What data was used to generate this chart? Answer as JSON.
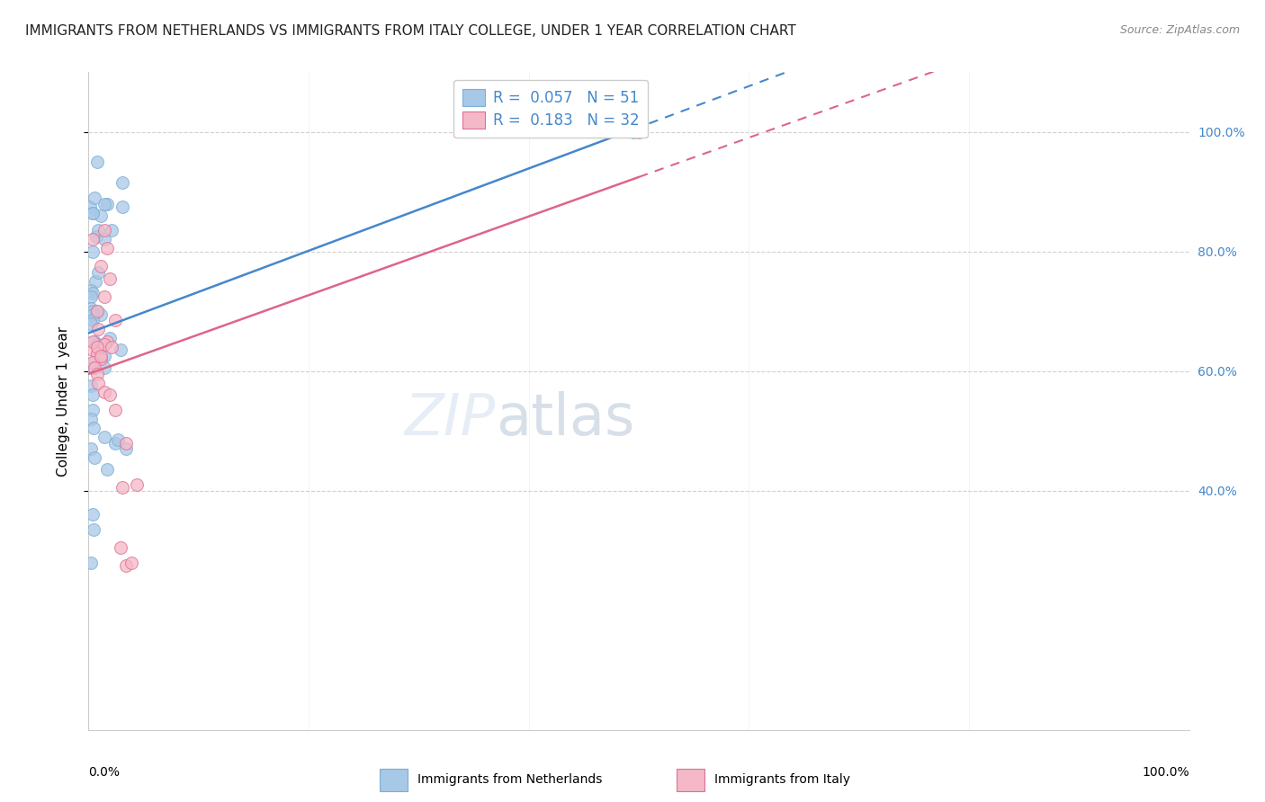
{
  "title": "IMMIGRANTS FROM NETHERLANDS VS IMMIGRANTS FROM ITALY COLLEGE, UNDER 1 YEAR CORRELATION CHART",
  "source": "Source: ZipAtlas.com",
  "ylabel": "College, Under 1 year",
  "watermark_zip": "ZIP",
  "watermark_atlas": "atlas",
  "legend_label_netherlands": "Immigrants from Netherlands",
  "legend_label_italy": "Immigrants from Italy",
  "blue_scatter_color": "#a8c8e8",
  "blue_scatter_edge": "#7aafd4",
  "pink_scatter_color": "#f4b8c8",
  "pink_scatter_edge": "#e07090",
  "blue_line_color": "#4488cc",
  "pink_line_color": "#dd6688",
  "r_blue": 0.057,
  "r_pink": 0.183,
  "n_blue": 51,
  "n_pink": 32,
  "xlim": [
    0,
    100
  ],
  "ylim": [
    0,
    110
  ],
  "y_ticks": [
    40,
    60,
    80,
    100
  ],
  "y_tick_labels": [
    "40.0%",
    "60.0%",
    "80.0%",
    "100.0%"
  ],
  "right_tick_color": "#4488cc",
  "netherlands_x": [
    0.15,
    0.5,
    1.7,
    3.1,
    1.4,
    3.1,
    0.4,
    1.1,
    0.4,
    0.7,
    0.9,
    1.4,
    2.1,
    0.4,
    0.6,
    0.25,
    0.4,
    0.25,
    0.25,
    0.4,
    0.75,
    1.1,
    0.4,
    0.35,
    0.25,
    0.55,
    0.75,
    1.9,
    2.9,
    1.4,
    0.55,
    0.35,
    1.4,
    0.25,
    0.4,
    0.35,
    0.25,
    0.45,
    1.4,
    2.4,
    0.25,
    0.55,
    1.7,
    2.7,
    3.4,
    0.35,
    0.45,
    0.75,
    0.9,
    49.5,
    0.25
  ],
  "netherlands_y": [
    87.5,
    89.0,
    88.0,
    91.5,
    88.0,
    87.5,
    86.5,
    86.0,
    86.5,
    82.5,
    83.5,
    82.0,
    83.5,
    80.0,
    75.0,
    73.5,
    73.0,
    72.5,
    70.5,
    70.0,
    70.0,
    69.5,
    69.5,
    68.5,
    68.0,
    65.0,
    64.5,
    65.5,
    63.5,
    62.5,
    61.5,
    60.5,
    60.5,
    57.5,
    56.0,
    53.5,
    52.0,
    50.5,
    49.0,
    48.0,
    47.0,
    45.5,
    43.5,
    48.5,
    47.0,
    36.0,
    33.5,
    95.0,
    76.5,
    100.0,
    28.0
  ],
  "italy_x": [
    1.4,
    0.4,
    1.7,
    1.1,
    1.9,
    1.4,
    0.75,
    2.4,
    0.9,
    1.7,
    1.4,
    2.1,
    0.4,
    0.75,
    1.1,
    0.4,
    0.55,
    0.75,
    0.9,
    1.4,
    1.9,
    2.4,
    3.4,
    0.4,
    0.75,
    1.1,
    3.1,
    4.4,
    50.0,
    2.9,
    3.4,
    3.9
  ],
  "italy_y": [
    83.5,
    82.0,
    80.5,
    77.5,
    75.5,
    72.5,
    70.0,
    68.5,
    67.0,
    65.0,
    64.5,
    64.0,
    63.5,
    63.0,
    62.0,
    61.5,
    60.5,
    59.5,
    58.0,
    56.5,
    56.0,
    53.5,
    48.0,
    65.0,
    64.0,
    62.5,
    40.5,
    41.0,
    100.0,
    30.5,
    27.5,
    28.0
  ],
  "blue_solid_x_end": 49.5,
  "pink_solid_x_end": 50.0
}
